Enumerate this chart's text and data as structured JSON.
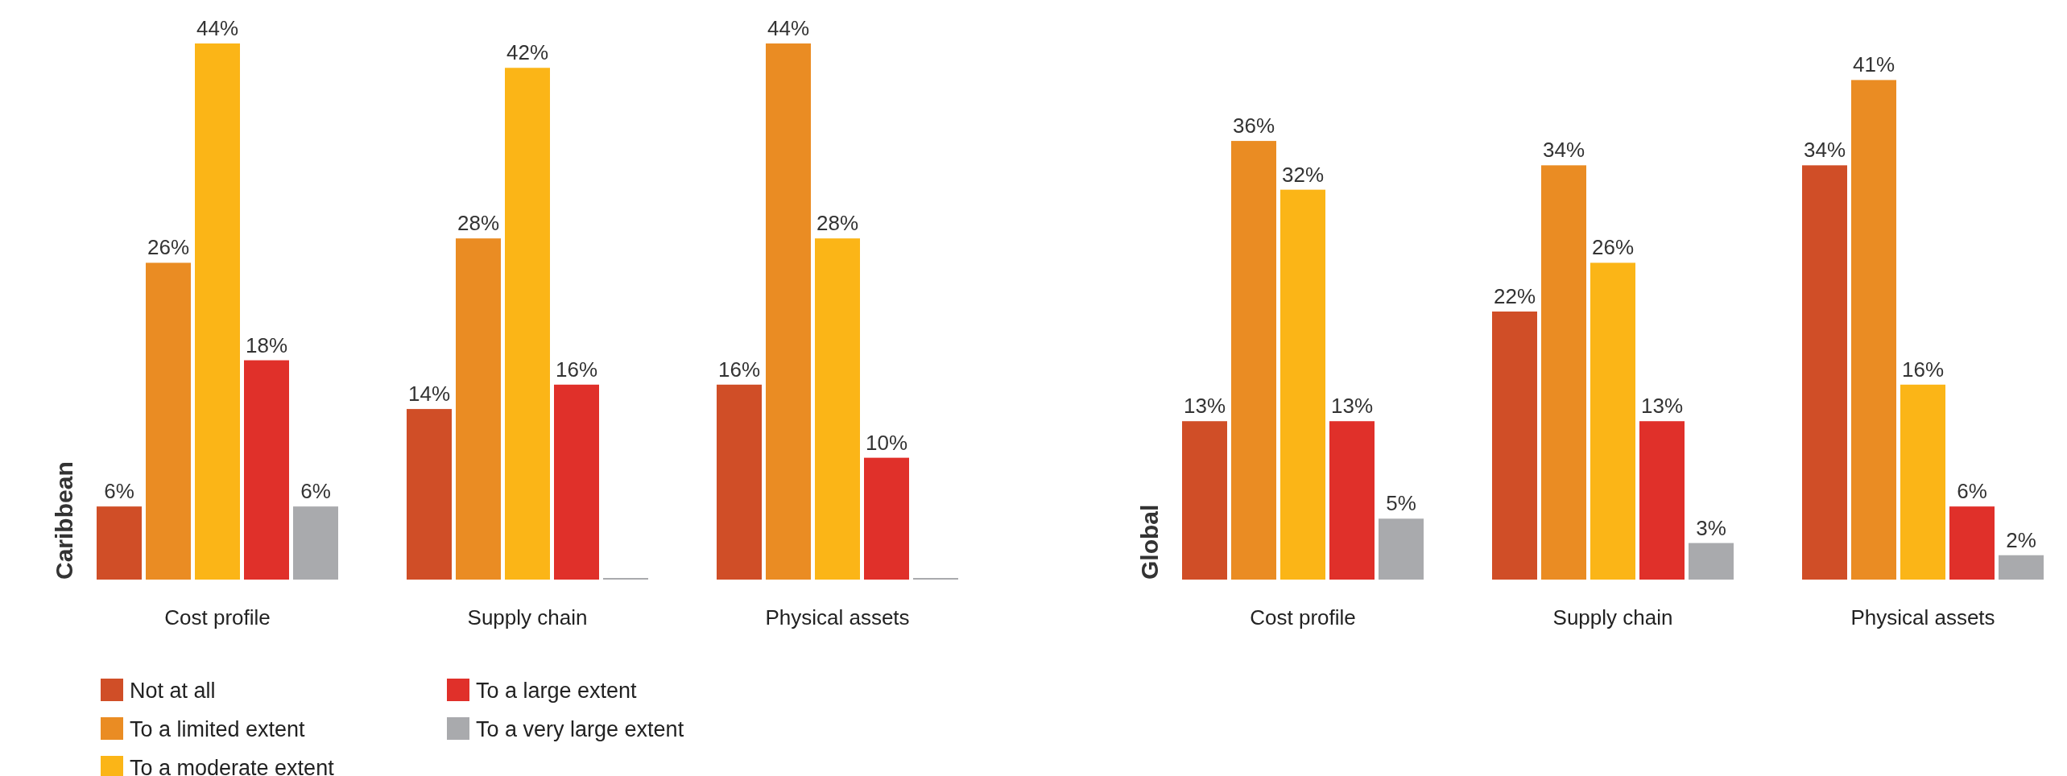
{
  "chart_data": [
    {
      "type": "bar",
      "ylabel": "Caribbean",
      "categories": [
        "Cost profile",
        "Supply chain",
        "Physical assets"
      ],
      "legend": "bottom",
      "series": [
        {
          "name": "Not at all",
          "color": "#d04e27",
          "values": [
            6,
            14,
            16
          ],
          "value_labels": [
            "6%",
            "14%",
            "16%"
          ]
        },
        {
          "name": "To a limited extent",
          "color": "#ea8c23",
          "values": [
            26,
            28,
            44
          ],
          "value_labels": [
            "26%",
            "28%",
            "44%"
          ]
        },
        {
          "name": "To a moderate extent",
          "color": "#fbb517",
          "values": [
            44,
            42,
            28
          ],
          "value_labels": [
            "44%",
            "42%",
            "28%"
          ]
        },
        {
          "name": "To a large extent",
          "color": "#e0302a",
          "values": [
            18,
            16,
            10
          ],
          "value_labels": [
            "18%",
            "16%",
            "10%"
          ]
        },
        {
          "name": "To a very large extent",
          "color": "#a9aaad",
          "values": [
            6,
            0,
            0
          ],
          "value_labels": [
            "6%",
            null,
            null
          ]
        }
      ]
    },
    {
      "type": "bar",
      "ylabel": "Global",
      "categories": [
        "Cost profile",
        "Supply chain",
        "Physical assets"
      ],
      "series": [
        {
          "color": "#d04e27",
          "values": [
            13,
            22,
            34
          ],
          "value_labels": [
            "13%",
            "22%",
            "34%"
          ]
        },
        {
          "color": "#ea8c23",
          "values": [
            36,
            34,
            41
          ],
          "value_labels": [
            "36%",
            "34%",
            "41%"
          ]
        },
        {
          "color": "#fbb517",
          "values": [
            32,
            26,
            16
          ],
          "value_labels": [
            "32%",
            "26%",
            "16%"
          ]
        },
        {
          "color": "#e0302a",
          "values": [
            13,
            13,
            6
          ],
          "value_labels": [
            "13%",
            "13%",
            "6%"
          ]
        },
        {
          "color": "#a9aaad",
          "values": [
            5,
            3,
            2
          ],
          "value_labels": [
            "5%",
            "3%",
            "2%"
          ]
        }
      ]
    }
  ]
}
